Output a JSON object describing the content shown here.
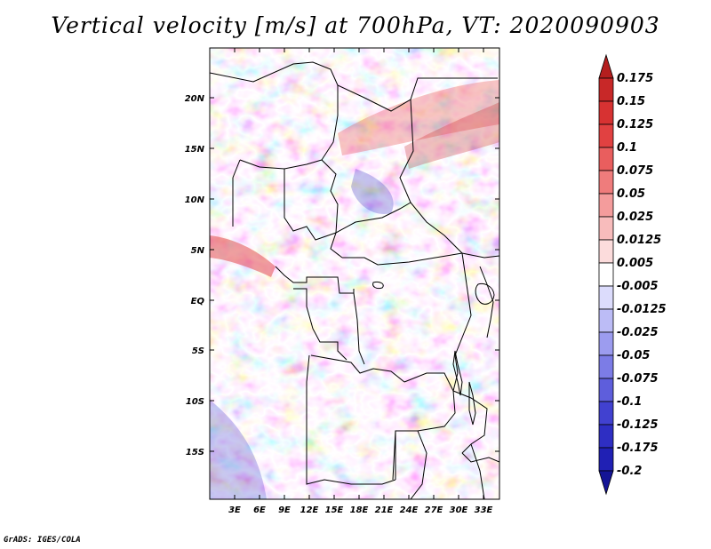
{
  "title": "Vertical velocity [m/s] at 700hPa, VT: 2020090903",
  "credit": "GrADS: IGES/COLA",
  "map": {
    "region": "Central Africa",
    "lon_range": [
      0,
      36
    ],
    "lat_range": [
      -20,
      25
    ],
    "lat_labels": [
      "20N",
      "15N",
      "10N",
      "5N",
      "EQ",
      "5S",
      "10S",
      "15S"
    ],
    "lat_values": [
      20,
      15,
      10,
      5,
      0,
      -5,
      -10,
      -15
    ],
    "lon_labels": [
      "3E",
      "6E",
      "9E",
      "12E",
      "15E",
      "18E",
      "21E",
      "24E",
      "27E",
      "30E",
      "33E"
    ],
    "lon_values": [
      3,
      6,
      9,
      12,
      15,
      18,
      21,
      24,
      27,
      30,
      33
    ]
  },
  "colorbar": {
    "labels": [
      "0.175",
      "0.15",
      "0.125",
      "0.1",
      "0.075",
      "0.05",
      "0.025",
      "0.0125",
      "0.005",
      "-0.005",
      "-0.0125",
      "-0.025",
      "-0.05",
      "-0.075",
      "-0.1",
      "-0.125",
      "-0.175",
      "-0.2"
    ],
    "colors": [
      "#b41e1e",
      "#c82828",
      "#d73232",
      "#e14141",
      "#e95e5e",
      "#ef7c7c",
      "#f49c9c",
      "#f8bcbc",
      "#fcdcdc",
      "#ffffff",
      "#dcdcfc",
      "#bcbcf6",
      "#9c9cef",
      "#7c7ce6",
      "#5e5edc",
      "#4141d0",
      "#2e2ec3",
      "#2020b4",
      "#141496"
    ]
  }
}
